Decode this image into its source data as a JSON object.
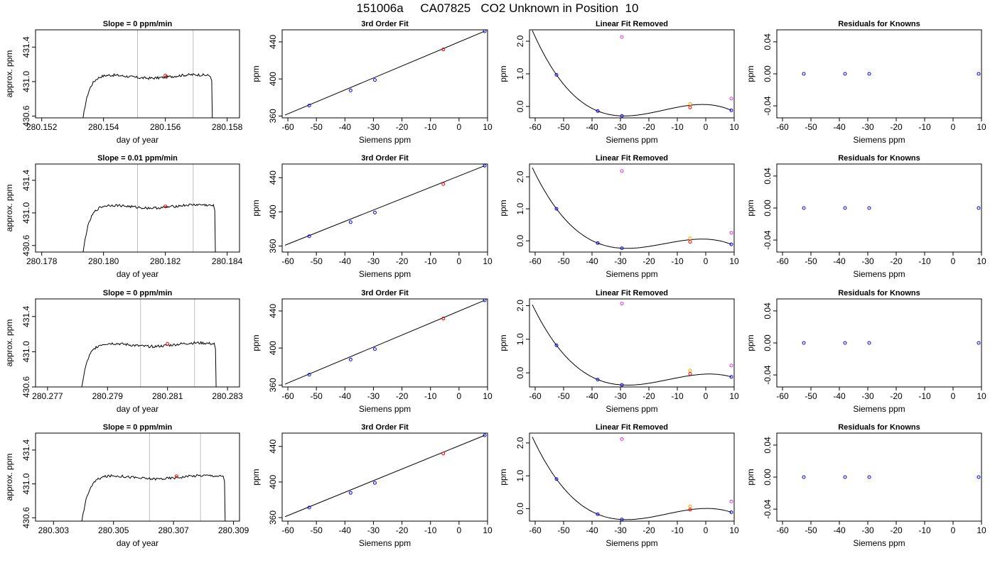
{
  "figure": {
    "title": "151006a     CA07825   CO2 Unknown in Position  10"
  },
  "colors": {
    "line": "#000000",
    "red": "#ff0000",
    "blue": "#0000ff",
    "magenta": "#e030e0",
    "orange": "#ffa500",
    "gray": "#bebebe"
  },
  "chart_data": [
    {
      "type": "line",
      "row": 1,
      "title": "Slope =  0  ppm/min",
      "xlabel": "day of year",
      "ylabel": "approx. ppm",
      "xlim": [
        280.1518,
        280.1584
      ],
      "ylim": [
        430.58,
        431.6
      ],
      "xticks": [
        "280.152",
        "280.154",
        "280.156",
        "280.158"
      ],
      "yticks": [
        "430.6",
        "431.0",
        "431.4"
      ],
      "x_start": 280.1533,
      "x_end": 280.1575,
      "level": 431.06,
      "vlines": [
        280.1551,
        280.1569
      ],
      "marker": {
        "x": 280.156,
        "y": 431.07
      }
    },
    {
      "type": "scatter",
      "row": 1,
      "title": "3rd Order Fit",
      "xlabel": "Siemens ppm",
      "ylabel": "ppm",
      "xlim": [
        -62,
        10
      ],
      "ylim": [
        358,
        453
      ],
      "xticks": [
        -60,
        -50,
        -40,
        -30,
        -20,
        -10,
        0,
        10
      ],
      "yticks": [
        360,
        400,
        440
      ],
      "blue_points": [
        [
          -52.5,
          371.2
        ],
        [
          -38,
          387.6
        ],
        [
          -29.5,
          398.9
        ],
        [
          9,
          451.5
        ]
      ],
      "red_points": [
        [
          -5.5,
          431.8
        ]
      ],
      "fit_line": [
        [
          -61,
          361
        ],
        [
          9,
          451.5
        ]
      ]
    },
    {
      "type": "scatter",
      "row": 1,
      "title": "Linear Fit Removed",
      "xlabel": "Siemens ppm",
      "ylabel": "ppm",
      "xlim": [
        -62,
        10
      ],
      "ylim": [
        -0.35,
        2.35
      ],
      "xticks": [
        -60,
        -50,
        -40,
        -30,
        -20,
        -10,
        0,
        10
      ],
      "yticks": [
        "0.0",
        "1.0",
        "2.0"
      ],
      "blue_points": [
        [
          -52.5,
          0.97
        ],
        [
          -38,
          -0.14
        ],
        [
          -29.5,
          -0.29
        ],
        [
          9,
          -0.12
        ]
      ],
      "red_points": [
        [
          -5.5,
          -0.03
        ]
      ],
      "magenta_points": [
        [
          -29.5,
          2.13
        ],
        [
          9,
          0.24
        ]
      ],
      "orange_points": [
        [
          -5.5,
          0.08
        ]
      ]
    },
    {
      "type": "scatter",
      "row": 1,
      "title": "Residuals for Knowns",
      "xlabel": "Siemens ppm",
      "ylabel": "ppm",
      "xlim": [
        -62,
        10
      ],
      "ylim": [
        -0.055,
        0.055
      ],
      "xticks": [
        -60,
        -50,
        -40,
        -30,
        -20,
        -10,
        0,
        10
      ],
      "yticks": [
        "-0.04",
        "0.00",
        "0.04"
      ],
      "blue_points": [
        [
          -52.5,
          0
        ],
        [
          -38,
          0
        ],
        [
          -29.5,
          0
        ],
        [
          9,
          0
        ]
      ]
    },
    {
      "type": "line",
      "row": 2,
      "title": "Slope =  0.01  ppm/min",
      "xlabel": "day of year",
      "ylabel": "approx. ppm",
      "xlim": [
        280.1778,
        280.1844
      ],
      "ylim": [
        430.52,
        431.6
      ],
      "xticks": [
        "280.178",
        "280.180",
        "280.182",
        "280.184"
      ],
      "yticks": [
        "430.6",
        "431.0",
        "431.4"
      ],
      "x_start": 280.1793,
      "x_end": 280.1836,
      "level": 431.08,
      "vlines": [
        280.1811,
        280.1829
      ],
      "marker": {
        "x": 280.182,
        "y": 431.08
      }
    },
    {
      "type": "scatter",
      "row": 2,
      "title": "3rd Order Fit",
      "xlabel": "Siemens ppm",
      "ylabel": "ppm",
      "xlim": [
        -62,
        10
      ],
      "ylim": [
        353,
        456
      ],
      "xticks": [
        -60,
        -50,
        -40,
        -30,
        -20,
        -10,
        0,
        10
      ],
      "yticks": [
        360,
        400,
        440
      ],
      "blue_points": [
        [
          -52.5,
          371.5
        ],
        [
          -38,
          388
        ],
        [
          -29.5,
          399.2
        ],
        [
          9,
          454
        ]
      ],
      "red_points": [
        [
          -5.5,
          432.5
        ]
      ],
      "fit_line": [
        [
          -61,
          361
        ],
        [
          9,
          454
        ]
      ]
    },
    {
      "type": "scatter",
      "row": 2,
      "title": "Linear Fit Removed",
      "xlabel": "Siemens ppm",
      "ylabel": "ppm",
      "xlim": [
        -62,
        10
      ],
      "ylim": [
        -0.35,
        2.4
      ],
      "xticks": [
        -60,
        -50,
        -40,
        -30,
        -20,
        -10,
        0,
        10
      ],
      "yticks": [
        "0.0",
        "1.0",
        "2.0"
      ],
      "blue_points": [
        [
          -52.5,
          1.0
        ],
        [
          -38,
          -0.07
        ],
        [
          -29.5,
          -0.23
        ],
        [
          9,
          -0.11
        ]
      ],
      "red_points": [
        [
          -5.5,
          -0.03
        ]
      ],
      "magenta_points": [
        [
          -29.5,
          2.18
        ],
        [
          9,
          0.25
        ]
      ],
      "orange_points": [
        [
          -5.5,
          0.08
        ]
      ]
    },
    {
      "type": "scatter",
      "row": 2,
      "title": "Residuals for Knowns",
      "xlabel": "Siemens ppm",
      "ylabel": "ppm",
      "xlim": [
        -62,
        10
      ],
      "ylim": [
        -0.055,
        0.055
      ],
      "xticks": [
        -60,
        -50,
        -40,
        -30,
        -20,
        -10,
        0,
        10
      ],
      "yticks": [
        "-0.04",
        "0.00",
        "0.04"
      ],
      "blue_points": [
        [
          -52.5,
          0
        ],
        [
          -38,
          0
        ],
        [
          -29.5,
          0
        ],
        [
          9,
          0
        ]
      ]
    },
    {
      "type": "line",
      "row": 3,
      "title": "Slope =  0  ppm/min",
      "xlabel": "day of year",
      "ylabel": "approx. ppm",
      "xlim": [
        280.2766,
        280.2834
      ],
      "ylim": [
        430.6,
        431.6
      ],
      "xticks": [
        "280.277",
        "280.279",
        "280.281",
        "280.283"
      ],
      "yticks": [
        "430.6",
        "431.0",
        "431.4"
      ],
      "x_start": 280.2781,
      "x_end": 280.2826,
      "level": 431.08,
      "vlines": [
        280.2801,
        280.2819
      ],
      "marker": {
        "x": 280.281,
        "y": 431.09
      }
    },
    {
      "type": "scatter",
      "row": 3,
      "title": "3rd Order Fit",
      "xlabel": "Siemens ppm",
      "ylabel": "ppm",
      "xlim": [
        -62,
        10
      ],
      "ylim": [
        358,
        453
      ],
      "xticks": [
        -60,
        -50,
        -40,
        -30,
        -20,
        -10,
        0,
        10
      ],
      "yticks": [
        360,
        400,
        440
      ],
      "blue_points": [
        [
          -52.5,
          371.2
        ],
        [
          -38,
          387.6
        ],
        [
          -29.5,
          398.9
        ],
        [
          9,
          451.5
        ]
      ],
      "red_points": [
        [
          -5.5,
          431.8
        ]
      ],
      "fit_line": [
        [
          -61,
          361
        ],
        [
          9,
          451.5
        ]
      ]
    },
    {
      "type": "scatter",
      "row": 3,
      "title": "Linear Fit Removed",
      "xlabel": "Siemens ppm",
      "ylabel": "ppm",
      "xlim": [
        -62,
        10
      ],
      "ylim": [
        -0.42,
        2.2
      ],
      "xticks": [
        -60,
        -50,
        -40,
        -30,
        -20,
        -10,
        0,
        10
      ],
      "yticks": [
        "0.0",
        "1.0",
        "2.0"
      ],
      "blue_points": [
        [
          -52.5,
          0.82
        ],
        [
          -38,
          -0.2
        ],
        [
          -29.5,
          -0.36
        ],
        [
          9,
          -0.12
        ]
      ],
      "red_points": [
        [
          -5.5,
          -0.03
        ]
      ],
      "magenta_points": [
        [
          -29.5,
          2.06
        ],
        [
          9,
          0.22
        ]
      ],
      "orange_points": [
        [
          -5.5,
          0.07
        ]
      ]
    },
    {
      "type": "scatter",
      "row": 3,
      "title": "Residuals for Knowns",
      "xlabel": "Siemens ppm",
      "ylabel": "ppm",
      "xlim": [
        -62,
        10
      ],
      "ylim": [
        -0.055,
        0.055
      ],
      "xticks": [
        -60,
        -50,
        -40,
        -30,
        -20,
        -10,
        0,
        10
      ],
      "yticks": [
        "-0.04",
        "0.00",
        "0.04"
      ],
      "blue_points": [
        [
          -52.5,
          0
        ],
        [
          -38,
          0
        ],
        [
          -29.5,
          0
        ],
        [
          9,
          0
        ]
      ]
    },
    {
      "type": "line",
      "row": 4,
      "title": "Slope =  0  ppm/min",
      "xlabel": "day of year",
      "ylabel": "approx. ppm",
      "xlim": [
        280.3024,
        280.3092
      ],
      "ylim": [
        430.56,
        431.6
      ],
      "xticks": [
        "280.303",
        "280.305",
        "280.307",
        "280.309"
      ],
      "yticks": [
        "430.6",
        "431.0",
        "431.4"
      ],
      "x_start": 280.3039,
      "x_end": 280.3087,
      "level": 431.08,
      "vlines": [
        280.3062,
        280.3079
      ],
      "marker": {
        "x": 280.3071,
        "y": 431.09
      }
    },
    {
      "type": "scatter",
      "row": 4,
      "title": "3rd Order Fit",
      "xlabel": "Siemens ppm",
      "ylabel": "ppm",
      "xlim": [
        -62,
        10
      ],
      "ylim": [
        356,
        455
      ],
      "xticks": [
        -60,
        -50,
        -40,
        -30,
        -20,
        -10,
        0,
        10
      ],
      "yticks": [
        360,
        400,
        440
      ],
      "blue_points": [
        [
          -52.5,
          371.3
        ],
        [
          -38,
          387.8
        ],
        [
          -29.5,
          399
        ],
        [
          9,
          452.5
        ]
      ],
      "red_points": [
        [
          -5.5,
          432
        ]
      ],
      "fit_line": [
        [
          -61,
          361
        ],
        [
          9,
          452.5
        ]
      ]
    },
    {
      "type": "scatter",
      "row": 4,
      "title": "Linear Fit Removed",
      "xlabel": "Siemens ppm",
      "ylabel": "ppm",
      "xlim": [
        -62,
        10
      ],
      "ylim": [
        -0.38,
        2.3
      ],
      "xticks": [
        -60,
        -50,
        -40,
        -30,
        -20,
        -10,
        0,
        10
      ],
      "yticks": [
        "0.0",
        "1.0",
        "2.0"
      ],
      "blue_points": [
        [
          -52.5,
          0.9
        ],
        [
          -38,
          -0.17
        ],
        [
          -29.5,
          -0.33
        ],
        [
          9,
          -0.11
        ]
      ],
      "red_points": [
        [
          -5.5,
          -0.03
        ]
      ],
      "magenta_points": [
        [
          -29.5,
          2.12
        ],
        [
          9,
          0.22
        ]
      ],
      "orange_points": [
        [
          -5.5,
          0.07
        ]
      ]
    },
    {
      "type": "scatter",
      "row": 4,
      "title": "Residuals for Knowns",
      "xlabel": "Siemens ppm",
      "ylabel": "ppm",
      "xlim": [
        -62,
        10
      ],
      "ylim": [
        -0.055,
        0.055
      ],
      "xticks": [
        -60,
        -50,
        -40,
        -30,
        -20,
        -10,
        0,
        10
      ],
      "yticks": [
        "-0.04",
        "0.00",
        "0.04"
      ],
      "blue_points": [
        [
          -52.5,
          0
        ],
        [
          -38,
          0
        ],
        [
          -29.5,
          0
        ],
        [
          9,
          0
        ]
      ]
    }
  ]
}
